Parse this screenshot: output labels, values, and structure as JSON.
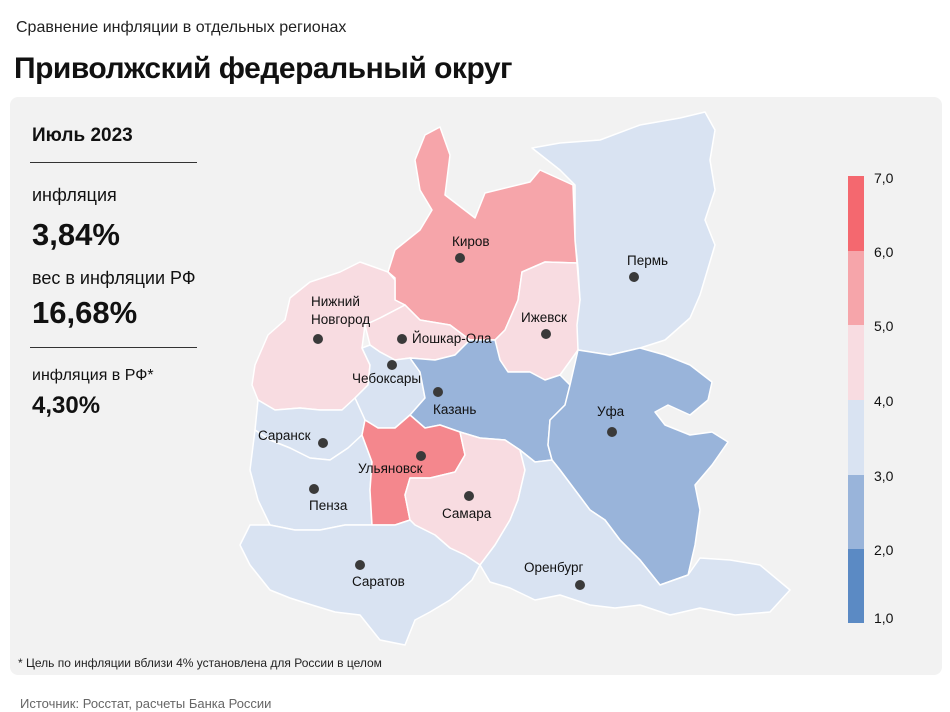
{
  "subtitle": "Сравнение инфляции  в отдельных регионах",
  "title": "Приволжский федеральный округ",
  "side": {
    "period": "Июль 2023",
    "inflation_label": "инфляция",
    "inflation_value": "3,84%",
    "weight_label": "вес в инфляции  РФ",
    "weight_value": "16,68%",
    "rf_label": "инфляция  в РФ*",
    "rf_value": "4,30%"
  },
  "legend": {
    "ticks": [
      "1,0",
      "2,0",
      "3,0",
      "4,0",
      "5,0",
      "6,0",
      "7,0"
    ],
    "colors": [
      "#5b8ac4",
      "#99b4da",
      "#d9e3f2",
      "#f8dce1",
      "#f6a5aa",
      "#f4686f"
    ]
  },
  "cities": {
    "kirov": "Киров",
    "perm": "Пермь",
    "nizhny": "Нижний\nНовгород",
    "nizhny_1": "Нижний",
    "nizhny_2": "Новгород",
    "yoshkar": "Йошкар-Ола",
    "izhevsk": "Ижевск",
    "cheboksary": "Чебоксары",
    "kazan": "Казань",
    "ufa": "Уфа",
    "saransk": "Саранск",
    "ulyanovsk": "Ульяновск",
    "penza": "Пенза",
    "samara": "Самара",
    "saratov": "Саратов",
    "orenburg": "Оренбург"
  },
  "footnote": "* Цель по инфляции  вблизи 4% установлена для России в целом",
  "source": "Источник: Росстат, расчеты Банка России"
}
